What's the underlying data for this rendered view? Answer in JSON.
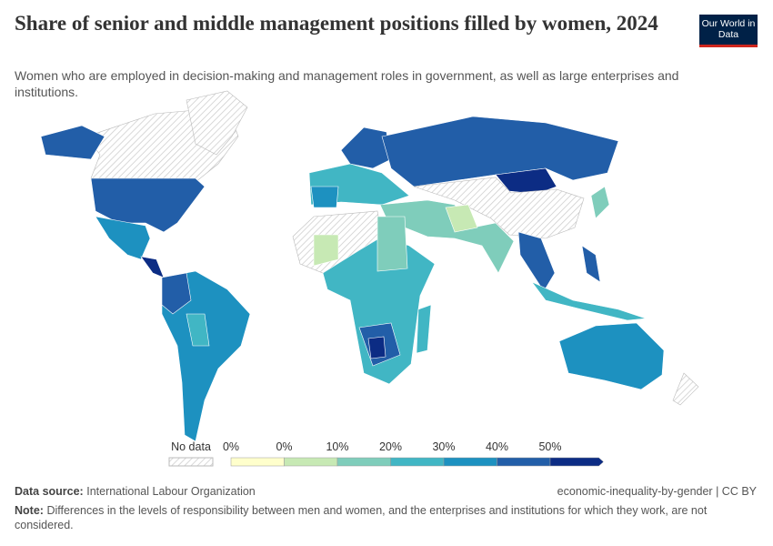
{
  "header": {
    "title": "Share of senior and middle management positions filled by women, 2024",
    "subtitle": "Women who are employed in decision-making and management roles in government, as well as large enterprises and institutions.",
    "logo": "Our World in Data"
  },
  "legend": {
    "no_data": "No data",
    "labels": [
      "0%",
      "0%",
      "10%",
      "20%",
      "30%",
      "40%",
      "50%"
    ],
    "colors": [
      "#ffffcc",
      "#c7e9b4",
      "#7fcdbb",
      "#41b6c4",
      "#1d91c0",
      "#225ea8",
      "#0c2c84"
    ]
  },
  "footer": {
    "source_label": "Data source:",
    "source": "International Labour Organization",
    "url_license": "economic-inequality-by-gender | CC BY",
    "note_label": "Note:",
    "note": "Differences in the levels of responsibility between men and women, and the enterprises and institutions for which they work, are not considered."
  }
}
